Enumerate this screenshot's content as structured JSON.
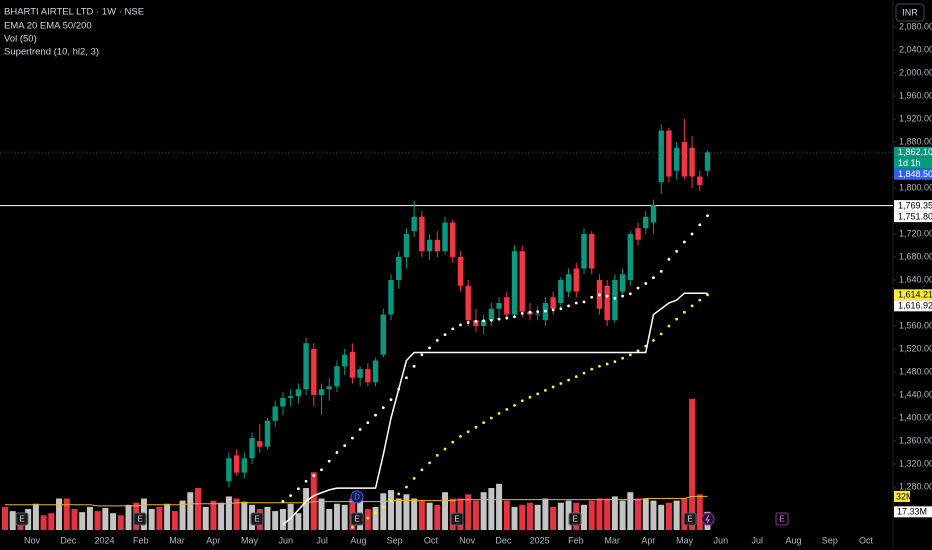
{
  "chart_data": {
    "type": "candlestick",
    "title": "BHARTI AIRTEL LTD · 1W · NSE",
    "legend": [
      "EMA 20 EMA 50/200",
      "Vol (50)",
      "Supertrend (10, hl2, 3)"
    ],
    "currency": "INR",
    "x_labels": [
      "Nov",
      "Dec",
      "2024",
      "Feb",
      "Mar",
      "Apr",
      "May",
      "Jun",
      "Jul",
      "Aug",
      "Sep",
      "Oct",
      "Nov",
      "Dec",
      "2025",
      "Feb",
      "Mar",
      "Apr",
      "May",
      "Jun",
      "Jul",
      "Aug",
      "Sep",
      "Oct"
    ],
    "ylim": [
      1205.2,
      2127
    ],
    "yticks": [
      {
        "value": 2080,
        "label": "2,080.00"
      },
      {
        "value": 2040,
        "label": "2,040.00"
      },
      {
        "value": 2000,
        "label": "2,000.00"
      },
      {
        "value": 1960,
        "label": "1,960.00"
      },
      {
        "value": 1920,
        "label": "1,920.00"
      },
      {
        "value": 1880,
        "label": "1,880.00"
      },
      {
        "value": 1800,
        "label": "1,800.00"
      },
      {
        "value": 1720,
        "label": "1,720.00"
      },
      {
        "value": 1680,
        "label": "1,680.00"
      },
      {
        "value": 1640,
        "label": "1,640.00"
      },
      {
        "value": 1560,
        "label": "1,560.00"
      },
      {
        "value": 1520,
        "label": "1,520.00"
      },
      {
        "value": 1480,
        "label": "1,480.00"
      },
      {
        "value": 1440,
        "label": "1,440.00"
      },
      {
        "value": 1400,
        "label": "1,400.00"
      },
      {
        "value": 1360,
        "label": "1,360.00"
      },
      {
        "value": 1320,
        "label": "1,320.00"
      },
      {
        "value": 1280,
        "label": "1,280.00"
      }
    ],
    "grid": false,
    "up_color": "#089981",
    "down_color": "#f23645",
    "open": [
      1290,
      1335,
      1305,
      1330,
      1360,
      1350,
      1395,
      1420,
      1435,
      1438,
      1450,
      1520,
      1440,
      1450,
      1455,
      1490,
      1515,
      1470,
      1485,
      1462,
      1510,
      1580,
      1640,
      1680,
      1725,
      1750,
      1690,
      1710,
      1690,
      1740,
      1680,
      1630,
      1570,
      1560,
      1570,
      1590,
      1610,
      1580,
      1690,
      1585,
      1580,
      1570,
      1610,
      1600,
      1620,
      1660,
      1660,
      1720,
      1640,
      1630,
      1570,
      1620,
      1640,
      1730,
      1730,
      1740,
      1810,
      1900,
      1830,
      1880,
      1870,
      1820,
      1830
    ],
    "high": [
      1340,
      1345,
      1340,
      1375,
      1390,
      1400,
      1430,
      1445,
      1450,
      1460,
      1540,
      1530,
      1460,
      1470,
      1500,
      1520,
      1530,
      1490,
      1495,
      1505,
      1590,
      1650,
      1690,
      1730,
      1778,
      1760,
      1720,
      1725,
      1750,
      1745,
      1690,
      1640,
      1590,
      1580,
      1600,
      1610,
      1620,
      1700,
      1700,
      1600,
      1595,
      1610,
      1620,
      1645,
      1660,
      1670,
      1730,
      1725,
      1650,
      1640,
      1650,
      1660,
      1725,
      1740,
      1760,
      1780,
      1910,
      1905,
      1880,
      1920,
      1890,
      1830,
      1865
    ],
    "low": [
      1280,
      1300,
      1295,
      1320,
      1340,
      1345,
      1385,
      1405,
      1420,
      1425,
      1440,
      1420,
      1405,
      1430,
      1445,
      1475,
      1460,
      1455,
      1455,
      1455,
      1505,
      1570,
      1625,
      1660,
      1715,
      1680,
      1675,
      1680,
      1685,
      1670,
      1620,
      1560,
      1550,
      1545,
      1560,
      1575,
      1570,
      1575,
      1575,
      1570,
      1570,
      1560,
      1580,
      1590,
      1610,
      1610,
      1650,
      1650,
      1580,
      1560,
      1565,
      1615,
      1630,
      1700,
      1720,
      1720,
      1790,
      1810,
      1815,
      1815,
      1800,
      1795,
      1820
    ],
    "close": [
      1330,
      1305,
      1330,
      1365,
      1350,
      1395,
      1420,
      1435,
      1438,
      1450,
      1530,
      1440,
      1450,
      1455,
      1490,
      1510,
      1470,
      1485,
      1462,
      1500,
      1580,
      1640,
      1680,
      1720,
      1750,
      1690,
      1710,
      1690,
      1740,
      1680,
      1630,
      1570,
      1560,
      1570,
      1590,
      1600,
      1580,
      1690,
      1585,
      1580,
      1582,
      1600,
      1590,
      1640,
      1650,
      1620,
      1720,
      1660,
      1590,
      1570,
      1640,
      1650,
      1720,
      1710,
      1750,
      1770,
      1900,
      1820,
      1870,
      1820,
      1820,
      1805,
      1862.1
    ],
    "close_label": "1,862.10",
    "countdown": "1d 1h",
    "extended_price": {
      "value": 1848.5,
      "label": "1,848.50",
      "color": "#2962ff"
    },
    "hline": {
      "value": 1769.35,
      "label": "1,769.35",
      "color": "#ffffff"
    },
    "series": [
      {
        "style": "dots",
        "color": "#ffffff",
        "last_label": "1,751.80",
        "values": [
          null,
          null,
          null,
          null,
          null,
          null,
          null,
          1255,
          1265,
          1277,
          1290,
          1300,
          1310,
          1325,
          1340,
          1352,
          1365,
          1380,
          1392,
          1405,
          1418,
          1432,
          1450,
          1470,
          1490,
          1510,
          1522,
          1535,
          1545,
          1555,
          1562,
          1566,
          1568,
          1569,
          1570,
          1572,
          1574,
          1576,
          1582,
          1584,
          1585,
          1586,
          1588,
          1590,
          1595,
          1600,
          1602,
          1610,
          1614,
          1612,
          1608,
          1612,
          1616,
          1626,
          1634,
          1644,
          1655,
          1676,
          1690,
          1706,
          1720,
          1736,
          1751.8
        ]
      },
      {
        "style": "dots",
        "color": "#ffeb3b",
        "last_label": "1,614.21",
        "values": [
          null,
          null,
          null,
          null,
          null,
          null,
          null,
          null,
          null,
          null,
          null,
          null,
          null,
          null,
          null,
          null,
          1210,
          1218,
          1226,
          1235,
          1245,
          1256,
          1268,
          1280,
          1295,
          1310,
          1322,
          1335,
          1346,
          1358,
          1368,
          1376,
          1384,
          1392,
          1400,
          1408,
          1415,
          1422,
          1430,
          1436,
          1442,
          1448,
          1454,
          1460,
          1466,
          1472,
          1478,
          1485,
          1490,
          1494,
          1498,
          1504,
          1510,
          1517,
          1525,
          1535,
          1546,
          1560,
          1572,
          1584,
          1595,
          1605,
          1614.21
        ]
      },
      {
        "style": "line",
        "color": "#ffffff",
        "last_label": "1,616.92",
        "values": [
          null,
          null,
          null,
          null,
          null,
          null,
          null,
          1215,
          1225,
          1240,
          1255,
          1265,
          1270,
          1275,
          1278,
          1278,
          1278,
          1278,
          1278,
          1278,
          1336,
          1400,
          1450,
          1500,
          1514,
          1514,
          1514,
          1514,
          1514,
          1514,
          1514,
          1514,
          1514,
          1514,
          1514,
          1514,
          1514,
          1514,
          1514,
          1514,
          1514,
          1514,
          1514,
          1514,
          1514,
          1514,
          1514,
          1514,
          1514,
          1514,
          1514,
          1514,
          1514,
          1514,
          1514,
          1580,
          1590,
          1600,
          1605,
          1617,
          1616.92,
          1616.92,
          1616.92
        ]
      }
    ],
    "volume": {
      "vlim": [
        0,
        505
      ],
      "values": [
        22,
        18,
        15,
        20,
        25,
        14,
        16,
        30,
        30,
        20,
        17,
        22,
        18,
        21,
        16,
        14,
        24,
        26,
        30,
        20,
        22,
        25,
        18,
        28,
        36,
        40,
        22,
        28,
        26,
        32,
        30,
        27,
        24,
        20,
        22,
        18,
        20,
        25,
        16,
        40,
        55,
        30,
        20,
        25,
        24,
        30,
        28,
        20,
        22,
        35,
        38,
        30,
        34,
        30,
        28,
        26,
        24,
        36,
        30,
        30,
        34,
        28,
        36,
        40,
        44,
        28,
        22,
        24,
        26,
        24,
        30,
        22,
        26,
        28,
        26,
        24,
        28,
        30,
        30,
        32,
        28,
        36,
        30,
        30,
        28,
        24,
        26,
        28,
        30,
        125,
        34,
        17.33
      ],
      "last_label": "17.33M",
      "colors": [
        "#f23645",
        "#cfcfcf",
        "#f23645",
        "#cfcfcf",
        "#cfcfcf",
        "#f23645",
        "#f23645",
        "#cfcfcf",
        "#f23645",
        "#f23645",
        "#cfcfcf",
        "#cfcfcf",
        "#f23645",
        "#cfcfcf",
        "#cfcfcf",
        "#f23645",
        "#cfcfcf",
        "#f23645",
        "#cfcfcf",
        "#cfcfcf",
        "#f23645",
        "#cfcfcf",
        "#f23645",
        "#cfcfcf",
        "#cfcfcf",
        "#f23645",
        "#cfcfcf",
        "#f23645",
        "#cfcfcf",
        "#cfcfcf",
        "#f23645",
        "#cfcfcf",
        "#cfcfcf",
        "#f23645",
        "#cfcfcf",
        "#cfcfcf",
        "#cfcfcf",
        "#cfcfcf",
        "#cfcfcf",
        "#cfcfcf",
        "#f23645",
        "#cfcfcf",
        "#cfcfcf",
        "#cfcfcf",
        "#cfcfcf",
        "#f23645",
        "#cfcfcf",
        "#f23645",
        "#cfcfcf",
        "#cfcfcf",
        "#cfcfcf",
        "#cfcfcf",
        "#cfcfcf",
        "#cfcfcf",
        "#f23645",
        "#cfcfcf",
        "#f23645",
        "#cfcfcf",
        "#f23645",
        "#f23645",
        "#f23645",
        "#f23645",
        "#cfcfcf",
        "#cfcfcf",
        "#cfcfcf",
        "#f23645",
        "#cfcfcf",
        "#f23645",
        "#f23645",
        "#cfcfcf",
        "#cfcfcf",
        "#f23645",
        "#cfcfcf",
        "#cfcfcf",
        "#f23645",
        "#cfcfcf",
        "#f23645",
        "#f23645",
        "#f23645",
        "#cfcfcf",
        "#cfcfcf",
        "#cfcfcf",
        "#f23645",
        "#cfcfcf",
        "#cfcfcf",
        "#cfcfcf",
        "#f23645",
        "#cfcfcf",
        "#f23645",
        "#f23645",
        "#f23645",
        "#cfcfcf"
      ],
      "ma": {
        "color": "#e6b422",
        "last_label": "32M",
        "values": [
          24,
          24,
          24,
          24,
          24,
          24,
          24,
          24,
          24,
          24,
          24,
          24,
          23,
          23,
          23,
          23,
          23,
          23,
          24,
          24,
          24,
          24,
          24,
          24,
          25,
          25,
          25,
          25,
          25,
          25,
          26,
          26,
          26,
          26,
          26,
          26,
          26,
          26,
          26,
          26,
          27,
          27,
          27,
          27,
          27,
          27,
          27,
          27,
          27,
          27,
          28,
          28,
          28,
          28,
          28,
          28,
          28,
          28,
          28,
          29,
          29,
          29,
          29,
          29,
          29,
          29,
          29,
          29,
          29,
          29,
          29,
          29,
          29,
          29,
          29,
          29,
          29,
          29,
          29,
          29,
          29,
          29,
          29,
          30,
          30,
          30,
          30,
          30,
          30,
          32,
          32,
          32
        ]
      }
    },
    "events": [
      {
        "label": "E"
      },
      {
        "label": "E"
      },
      {
        "label": "E"
      },
      {
        "label": "D"
      },
      {
        "label": "E"
      },
      {
        "label": "E"
      },
      {
        "label": "E"
      },
      {
        "label": "E"
      },
      {
        "label": "E"
      }
    ]
  }
}
